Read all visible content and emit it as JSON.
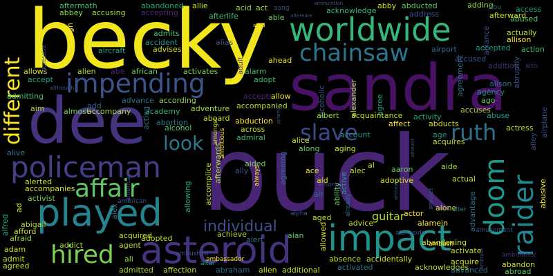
{
  "words": [
    {
      "text": "becky",
      "color": "#f1e51d"
    },
    {
      "text": "sandra",
      "color": "#471164"
    },
    {
      "text": "buck",
      "color": "#482475"
    },
    {
      "text": "dee",
      "color": "#46337f"
    },
    {
      "text": "worldwide",
      "color": "#35b779"
    },
    {
      "text": "chainsaw",
      "color": "#2a768e"
    },
    {
      "text": "impending",
      "color": "#3b528b"
    },
    {
      "text": "policeman",
      "color": "#433e85"
    },
    {
      "text": "played",
      "color": "#26828e"
    },
    {
      "text": "asteroid",
      "color": "#46337f"
    },
    {
      "text": "impact",
      "color": "#21918c"
    },
    {
      "text": "affair",
      "color": "#5ec962"
    },
    {
      "text": "hired",
      "color": "#7ad151"
    },
    {
      "text": "different",
      "color": "#fde725"
    },
    {
      "text": "slave",
      "color": "#3e4989"
    },
    {
      "text": "ruth",
      "color": "#2c728e"
    },
    {
      "text": "doom",
      "color": "#1f9a8a"
    },
    {
      "text": "raider",
      "color": "#24868e"
    },
    {
      "text": "look",
      "color": "#2a788e"
    },
    {
      "text": "individual",
      "color": "#3b528b"
    },
    {
      "text": "guitar",
      "color": "#b5de2b"
    },
    {
      "text": "abby",
      "color": "#d8e219"
    },
    {
      "text": "abducted",
      "color": "#5ec962"
    },
    {
      "text": "adding",
      "color": "#a0da39"
    },
    {
      "text": "aftermath",
      "color": "#44bf70"
    },
    {
      "text": "abandoned",
      "color": "#22a884"
    },
    {
      "text": "allie",
      "color": "#d2e21b"
    },
    {
      "text": "acid",
      "color": "#95d840"
    },
    {
      "text": "act",
      "color": "#a5db36"
    },
    {
      "text": "aang",
      "color": "#3b528b"
    },
    {
      "text": "acknowledge",
      "color": "#37b878"
    },
    {
      "text": "abbey",
      "color": "#8bd646"
    },
    {
      "text": "accusing",
      "color": "#a8db34"
    },
    {
      "text": "accepting",
      "color": "#482878"
    },
    {
      "text": "afterlife",
      "color": "#3fbc73"
    },
    {
      "text": "able",
      "color": "#6ece58"
    },
    {
      "text": "address",
      "color": "#3b528b"
    },
    {
      "text": "access",
      "color": "#1fa287"
    },
    {
      "text": "abused",
      "color": "#5ec962"
    },
    {
      "text": "actually",
      "color": "#c2df23"
    },
    {
      "text": "allison",
      "color": "#fde725"
    },
    {
      "text": "afterward",
      "color": "#c8e020"
    },
    {
      "text": "abu",
      "color": "#2a788e"
    },
    {
      "text": "admits",
      "color": "#48c16e"
    },
    {
      "text": "accident",
      "color": "#1f9e89"
    },
    {
      "text": "advises",
      "color": "#cae11f"
    },
    {
      "text": "aircraft",
      "color": "#22a884"
    },
    {
      "text": "alias",
      "color": "#3b528b"
    },
    {
      "text": "adult",
      "color": "#46327e"
    },
    {
      "text": "airport",
      "color": "#2f6c8e"
    },
    {
      "text": "accepted",
      "color": "#1f9a8a"
    },
    {
      "text": "accused",
      "color": "#39558c"
    },
    {
      "text": "addition",
      "color": "#472d7b"
    },
    {
      "text": "action",
      "color": "#4ac16d"
    },
    {
      "text": "abruptly",
      "color": "#3b528b"
    },
    {
      "text": "also",
      "color": "#46337f"
    },
    {
      "text": "ahead",
      "color": "#e5e419"
    },
    {
      "text": "alarm",
      "color": "#40bd72"
    },
    {
      "text": "adopt",
      "color": "#35b779"
    },
    {
      "text": "alexander",
      "color": "#9dd93b"
    },
    {
      "text": "alison",
      "color": "#2e6f8e"
    },
    {
      "text": "agency",
      "color": "#1f968b"
    },
    {
      "text": "ago",
      "color": "#5ec962"
    },
    {
      "text": "airplane",
      "color": "#3b528b"
    },
    {
      "text": "allows",
      "color": "#d8e219"
    },
    {
      "text": "alien",
      "color": "#b2dd2d"
    },
    {
      "text": "abe",
      "color": "#482475"
    },
    {
      "text": "african",
      "color": "#6ccd5a"
    },
    {
      "text": "activates",
      "color": "#7fd34e"
    },
    {
      "text": "accept",
      "color": "#20a486"
    },
    {
      "text": "admitting",
      "color": "#3fbc73"
    },
    {
      "text": "aim",
      "color": "#b5de2b"
    },
    {
      "text": "almost",
      "color": "#7ad151"
    },
    {
      "text": "add",
      "color": "#31688e"
    },
    {
      "text": "accompany",
      "color": "#a2da37"
    },
    {
      "text": "advance",
      "color": "#2d708e"
    },
    {
      "text": "according",
      "color": "#90d743"
    },
    {
      "text": "academy",
      "color": "#31b57b"
    },
    {
      "text": "adventure",
      "color": "#a8db34"
    },
    {
      "text": "accepts",
      "color": "#482878"
    },
    {
      "text": "allow",
      "color": "#f1e51d"
    },
    {
      "text": "accompanied",
      "color": "#b8de29"
    },
    {
      "text": "alcoholic",
      "color": "#3b528b"
    },
    {
      "text": "agree",
      "color": "#1fa187"
    },
    {
      "text": "agreement",
      "color": "#2d708e"
    },
    {
      "text": "acquaintance",
      "color": "#c2df23"
    },
    {
      "text": "albert",
      "color": "#a0da39"
    },
    {
      "text": "affect",
      "color": "#fde725"
    },
    {
      "text": "activity",
      "color": "#22a884"
    },
    {
      "text": "abducts",
      "color": "#d5e21a"
    },
    {
      "text": "accuses",
      "color": "#b0dd2f"
    },
    {
      "text": "abuse",
      "color": "#1f998a"
    },
    {
      "text": "actress",
      "color": "#c0df25"
    },
    {
      "text": "alley",
      "color": "#3e4a89"
    },
    {
      "text": "abortion",
      "color": "#2a788e"
    },
    {
      "text": "alcohol",
      "color": "#52c569"
    },
    {
      "text": "aboard",
      "color": "#d2e21b"
    },
    {
      "text": "abduction",
      "color": "#fde725"
    },
    {
      "text": "across",
      "color": "#c5e021"
    },
    {
      "text": "admiral",
      "color": "#3fbc73"
    },
    {
      "text": "account",
      "color": "#1f958b"
    },
    {
      "text": "age",
      "color": "#1f9a8a"
    },
    {
      "text": "acquires",
      "color": "#c0df25"
    },
    {
      "text": "alice",
      "color": "#cde11d"
    },
    {
      "text": "along",
      "color": "#5ec962"
    },
    {
      "text": "aging",
      "color": "#cae11f"
    },
    {
      "text": "ace",
      "color": "#f1e51d"
    },
    {
      "text": "aid",
      "color": "#e2e418"
    },
    {
      "text": "agreeing",
      "color": "#2c728e"
    },
    {
      "text": "aided",
      "color": "#7ad151"
    },
    {
      "text": "ally",
      "color": "#3b528b"
    },
    {
      "text": "al",
      "color": "#d2e21b"
    },
    {
      "text": "alec",
      "color": "#bade28"
    },
    {
      "text": "aaron",
      "color": "#6ece58"
    },
    {
      "text": "aide",
      "color": "#a2da37"
    },
    {
      "text": "adoptive",
      "color": "#dae319"
    },
    {
      "text": "actual",
      "color": "#c5e021"
    },
    {
      "text": "alive",
      "color": "#2a788e"
    },
    {
      "text": "alerted",
      "color": "#c8e020"
    },
    {
      "text": "accompanies",
      "color": "#d2e21b"
    },
    {
      "text": "activist",
      "color": "#7ad151"
    },
    {
      "text": "alex",
      "color": "#2c728e"
    },
    {
      "text": "accomplice",
      "color": "#c5e021"
    },
    {
      "text": "afterwards",
      "color": "#a5db36"
    },
    {
      "text": "acting",
      "color": "#2d708e"
    },
    {
      "text": "america",
      "color": "#3b528b"
    },
    {
      "text": "amongst",
      "color": "#cde11d"
    },
    {
      "text": "ambitious",
      "color": "#fde725"
    },
    {
      "text": "always",
      "color": "#fde725"
    },
    {
      "text": "among",
      "color": "#3e4989"
    },
    {
      "text": "air",
      "color": "#2c728e"
    },
    {
      "text": "ability",
      "color": "#5ec962"
    },
    {
      "text": "active",
      "color": "#1fa088"
    },
    {
      "text": "altar",
      "color": "#20a486"
    },
    {
      "text": "alfred",
      "color": "#22a884"
    },
    {
      "text": "ad",
      "color": "#d2e21b"
    },
    {
      "text": "abigail",
      "color": "#b0dd2f"
    },
    {
      "text": "afford",
      "color": "#cde11d"
    },
    {
      "text": "afraid",
      "color": "#a5db36"
    },
    {
      "text": "allowing",
      "color": "#22a884"
    },
    {
      "text": "american",
      "color": "#3b528b"
    },
    {
      "text": "achieve",
      "color": "#b0dd2f"
    },
    {
      "text": "alone",
      "color": "#d2e21b"
    },
    {
      "text": "advice",
      "color": "#c8e020"
    },
    {
      "text": "aged",
      "color": "#c5e021"
    },
    {
      "text": "allowed",
      "color": "#d8e219"
    },
    {
      "text": "alamein",
      "color": "#fde725"
    },
    {
      "text": "actor",
      "color": "#fde725"
    },
    {
      "text": "advantage",
      "color": "#2c728e"
    },
    {
      "text": "alpha",
      "color": "#3b528b"
    },
    {
      "text": "already",
      "color": "#2d708e"
    },
    {
      "text": "amulet",
      "color": "#3b528b"
    },
    {
      "text": "alter",
      "color": "#2a788e"
    },
    {
      "text": "abusive",
      "color": "#fde725"
    },
    {
      "text": "acquired",
      "color": "#c5e021"
    },
    {
      "text": "agent",
      "color": "#bade28"
    },
    {
      "text": "addict",
      "color": "#aadc32"
    },
    {
      "text": "adopted",
      "color": "#c0df25"
    },
    {
      "text": "alert",
      "color": "#2d708e"
    },
    {
      "text": "alan",
      "color": "#5ec962"
    },
    {
      "text": "adam",
      "color": "#d2e21b"
    },
    {
      "text": "admit",
      "color": "#cae11f"
    },
    {
      "text": "agreed",
      "color": "#c8e020"
    },
    {
      "text": "ali",
      "color": "#a5db36"
    },
    {
      "text": "ambushed",
      "color": "#3b528b"
    },
    {
      "text": "ambassador",
      "color": "#fde725"
    },
    {
      "text": "admitted",
      "color": "#b0dd2f"
    },
    {
      "text": "affection",
      "color": "#c5e021"
    },
    {
      "text": "abraham",
      "color": "#2d708e"
    },
    {
      "text": "allen",
      "color": "#d2e21b"
    },
    {
      "text": "additional",
      "color": "#cde11d"
    },
    {
      "text": "activated",
      "color": "#2a788e"
    },
    {
      "text": "absence",
      "color": "#c5e021"
    },
    {
      "text": "accidentally",
      "color": "#d2e21b"
    },
    {
      "text": "acknowledges",
      "color": "#c0df25"
    },
    {
      "text": "alongside",
      "color": "#3b528b"
    },
    {
      "text": "ambush",
      "color": "#fde725"
    },
    {
      "text": "amusement",
      "color": "#3b528b"
    },
    {
      "text": "abandoning",
      "color": "#cde11d"
    },
    {
      "text": "activate",
      "color": "#c5e021"
    },
    {
      "text": "acquire",
      "color": "#d2e21b"
    },
    {
      "text": "advanced",
      "color": "#2d708e"
    },
    {
      "text": "ambulance",
      "color": "#482878"
    },
    {
      "text": "abandon",
      "color": "#cae11f"
    },
    {
      "text": "abroad",
      "color": "#5ec962"
    },
    {
      "text": "amends",
      "color": "#3b528b"
    },
    {
      "text": "amnesia",
      "color": "#3b528b"
    },
    {
      "text": "amount",
      "color": "#3b528b"
    },
    {
      "text": "ambrose",
      "color": "#3b528b"
    },
    {
      "text": "aggressive",
      "color": "#3b528b"
    },
    {
      "text": "although",
      "color": "#3b528b"
    },
    {
      "text": "alternate",
      "color": "#3b528b"
    },
    {
      "text": "ammunition",
      "color": "#3b528b"
    },
    {
      "text": "amid",
      "color": "#fde725"
    },
    {
      "text": "align",
      "color": "#fde725"
    },
    {
      "text": "alliance",
      "color": "#3b528b"
    }
  ]
}
